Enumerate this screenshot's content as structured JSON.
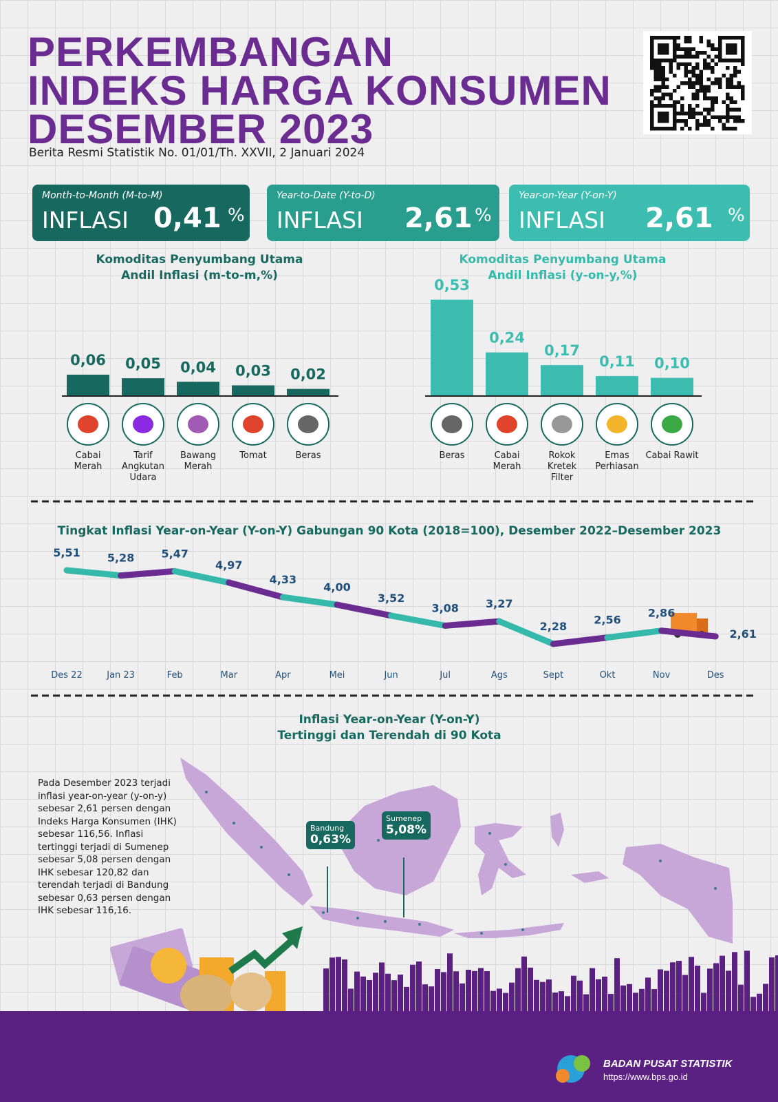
{
  "header": {
    "title": [
      "PERKEMBANGAN",
      "INDEKS HARGA KONSUMEN",
      "DESEMBER 2023"
    ],
    "subtitle": "Berita Resmi Statistik No. 01/01/Th. XXVII, 2 Januari 2024"
  },
  "kpis": [
    {
      "period": "Month-to-Month (M-to-M)",
      "label": "INFLASI",
      "value": "0,41",
      "unit": "%"
    },
    {
      "period": "Year-to-Date (Y-to-D)",
      "label": "INFLASI",
      "value": "2,61",
      "unit": "%"
    },
    {
      "period": "Year-on-Year (Y-on-Y)",
      "label": "INFLASI",
      "value": "2,61",
      "unit": "%"
    }
  ],
  "chart_data": [
    {
      "type": "bar",
      "title": "Komoditas Penyumbang Utama",
      "subtitle": "Andil Inflasi (m-to-m,%)",
      "categories": [
        "Cabai Merah",
        "Tarif Angkutan Udara",
        "Bawang Merah",
        "Tomat",
        "Beras"
      ],
      "values": [
        0.06,
        0.05,
        0.04,
        0.03,
        0.02
      ],
      "value_labels": [
        "0,06",
        "0,05",
        "0,04",
        "0,03",
        "0,02"
      ],
      "color": "#17695f"
    },
    {
      "type": "bar",
      "title": "Komoditas Penyumbang Utama",
      "subtitle": "Andil Inflasi (y-on-y,%)",
      "categories": [
        "Beras",
        "Cabai Merah",
        "Rokok Kretek Filter",
        "Emas Perhiasan",
        "Cabai Rawit"
      ],
      "values": [
        0.53,
        0.24,
        0.17,
        0.11,
        0.1
      ],
      "value_labels": [
        "0,53",
        "0,24",
        "0,17",
        "0,11",
        "0,10"
      ],
      "color": "#3dbdb0"
    },
    {
      "type": "line",
      "title": "Tingkat Inflasi Year-on-Year (Y-on-Y) Gabungan 90 Kota (2018=100), Desember 2022–Desember 2023",
      "categories": [
        "Des 22",
        "Jan 23",
        "Feb",
        "Mar",
        "Apr",
        "Mei",
        "Jun",
        "Jul",
        "Ags",
        "Sept",
        "Okt",
        "Nov",
        "Des"
      ],
      "values": [
        5.51,
        5.28,
        5.47,
        4.97,
        4.33,
        4.0,
        3.52,
        3.08,
        3.27,
        2.28,
        2.56,
        2.86,
        2.61
      ],
      "value_labels": [
        "5,51",
        "5,28",
        "5,47",
        "4,97",
        "4,33",
        "4,00",
        "3,52",
        "3,08",
        "3,27",
        "2,28",
        "2,56",
        "2,86",
        "2,61"
      ],
      "colors": [
        "#35b9ab",
        "#6a2c91"
      ]
    }
  ],
  "map": {
    "title": [
      "Inflasi Year-on-Year (Y-on-Y)",
      "Tertinggi dan Terendah di 90 Kota"
    ],
    "paragraph": "Pada Desember 2023 terjadi inflasi year-on-year (y-on-y) sebesar 2,61 persen dengan Indeks Harga Konsumen (IHK) sebesar 116,56. Inflasi tertinggi terjadi di Sumenep sebesar 5,08 persen dengan IHK sebesar 120,82 dan terendah terjadi di Bandung sebesar 0,63 persen dengan IHK sebesar 116,16.",
    "callouts": [
      {
        "city": "Bandung",
        "value": "0,63%"
      },
      {
        "city": "Sumenep",
        "value": "5,08%"
      }
    ]
  },
  "footer": {
    "org": "BADAN PUSAT STATISTIK",
    "url": "https://www.bps.go.id"
  }
}
